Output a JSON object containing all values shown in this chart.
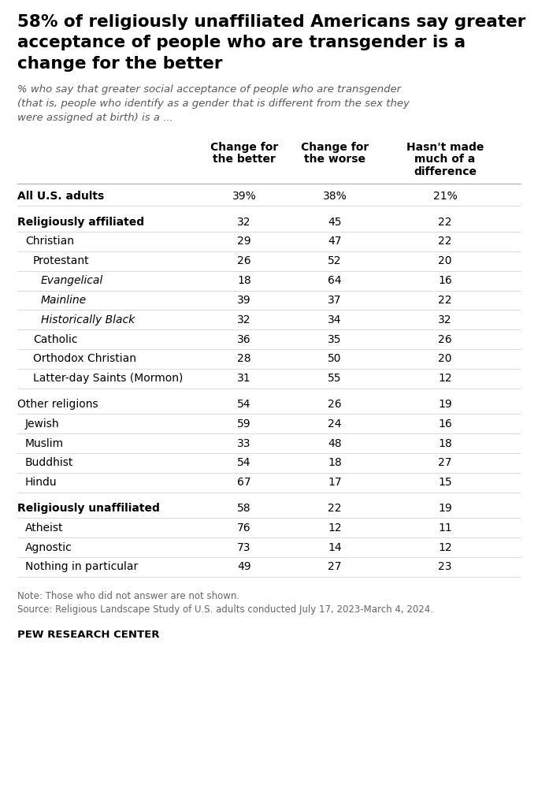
{
  "title": "58% of religiously unaffiliated Americans say greater\nacceptance of people who are transgender is a\nchange for the better",
  "subtitle": "% who say that greater social acceptance of people who are transgender\n(that is, people who identify as a gender that is different from the sex they\nwere assigned at birth) is a ...",
  "col_headers": [
    "Change for\nthe better",
    "Change for\nthe worse",
    "Hasn't made\nmuch of a\ndifference"
  ],
  "rows": [
    {
      "label": "All U.S. adults",
      "indent": 0,
      "bold": true,
      "italic": false,
      "values": [
        "39%",
        "38%",
        "21%"
      ],
      "spacer_above": false
    },
    {
      "label": "Religiously affiliated",
      "indent": 0,
      "bold": true,
      "italic": false,
      "values": [
        "32",
        "45",
        "22"
      ],
      "spacer_above": true
    },
    {
      "label": "Christian",
      "indent": 1,
      "bold": false,
      "italic": false,
      "values": [
        "29",
        "47",
        "22"
      ],
      "spacer_above": false
    },
    {
      "label": "Protestant",
      "indent": 2,
      "bold": false,
      "italic": false,
      "values": [
        "26",
        "52",
        "20"
      ],
      "spacer_above": false
    },
    {
      "label": "Evangelical",
      "indent": 3,
      "bold": false,
      "italic": true,
      "values": [
        "18",
        "64",
        "16"
      ],
      "spacer_above": false
    },
    {
      "label": "Mainline",
      "indent": 3,
      "bold": false,
      "italic": true,
      "values": [
        "39",
        "37",
        "22"
      ],
      "spacer_above": false
    },
    {
      "label": "Historically Black",
      "indent": 3,
      "bold": false,
      "italic": true,
      "values": [
        "32",
        "34",
        "32"
      ],
      "spacer_above": false
    },
    {
      "label": "Catholic",
      "indent": 2,
      "bold": false,
      "italic": false,
      "values": [
        "36",
        "35",
        "26"
      ],
      "spacer_above": false
    },
    {
      "label": "Orthodox Christian",
      "indent": 2,
      "bold": false,
      "italic": false,
      "values": [
        "28",
        "50",
        "20"
      ],
      "spacer_above": false
    },
    {
      "label": "Latter-day Saints (Mormon)",
      "indent": 2,
      "bold": false,
      "italic": false,
      "values": [
        "31",
        "55",
        "12"
      ],
      "spacer_above": false
    },
    {
      "label": "Other religions",
      "indent": 0,
      "bold": false,
      "italic": false,
      "values": [
        "54",
        "26",
        "19"
      ],
      "spacer_above": true
    },
    {
      "label": "Jewish",
      "indent": 1,
      "bold": false,
      "italic": false,
      "values": [
        "59",
        "24",
        "16"
      ],
      "spacer_above": false
    },
    {
      "label": "Muslim",
      "indent": 1,
      "bold": false,
      "italic": false,
      "values": [
        "33",
        "48",
        "18"
      ],
      "spacer_above": false
    },
    {
      "label": "Buddhist",
      "indent": 1,
      "bold": false,
      "italic": false,
      "values": [
        "54",
        "18",
        "27"
      ],
      "spacer_above": false
    },
    {
      "label": "Hindu",
      "indent": 1,
      "bold": false,
      "italic": false,
      "values": [
        "67",
        "17",
        "15"
      ],
      "spacer_above": false
    },
    {
      "label": "Religiously unaffiliated",
      "indent": 0,
      "bold": true,
      "italic": false,
      "values": [
        "58",
        "22",
        "19"
      ],
      "spacer_above": true
    },
    {
      "label": "Atheist",
      "indent": 1,
      "bold": false,
      "italic": false,
      "values": [
        "76",
        "12",
        "11"
      ],
      "spacer_above": false
    },
    {
      "label": "Agnostic",
      "indent": 1,
      "bold": false,
      "italic": false,
      "values": [
        "73",
        "14",
        "12"
      ],
      "spacer_above": false
    },
    {
      "label": "Nothing in particular",
      "indent": 1,
      "bold": false,
      "italic": false,
      "values": [
        "49",
        "27",
        "23"
      ],
      "spacer_above": false
    }
  ],
  "note": "Note: Those who did not answer are not shown.",
  "source": "Source: Religious Landscape Study of U.S. adults conducted July 17, 2023-March 4, 2024.",
  "footer": "PEW RESEARCH CENTER",
  "bg_color": "#ffffff",
  "text_color": "#000000",
  "subtitle_color": "#595959",
  "note_color": "#666666"
}
